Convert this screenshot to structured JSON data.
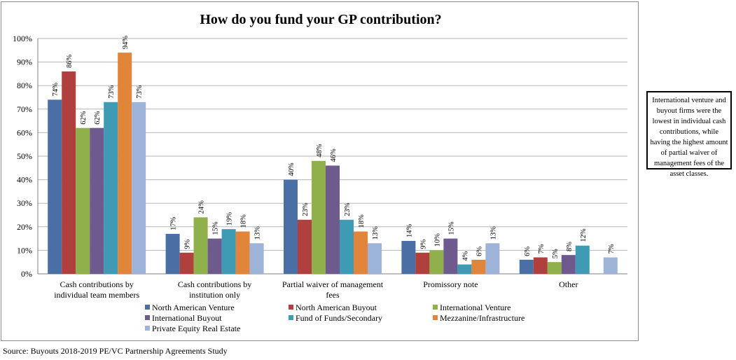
{
  "chart_data": {
    "type": "bar",
    "title": "How do you fund your GP contribution?",
    "categories": [
      [
        "Cash contributions by",
        "individual team members"
      ],
      [
        "Cash contributions by",
        "institution only"
      ],
      [
        "Partial waiver of management",
        "fees"
      ],
      [
        "Promissory note"
      ],
      [
        "Other"
      ]
    ],
    "ylim": [
      0,
      100
    ],
    "yticks": [
      "0%",
      "10%",
      "20%",
      "30%",
      "40%",
      "50%",
      "60%",
      "70%",
      "80%",
      "90%",
      "100%"
    ],
    "grid": true,
    "legend_position": "bottom",
    "series": [
      {
        "name": "North American Venture",
        "color": "#4a6fa5",
        "values": [
          74,
          17,
          40,
          14,
          6
        ],
        "labels": [
          "74%",
          "17%",
          "40%",
          "14%",
          "6%"
        ]
      },
      {
        "name": "North American Buyout",
        "color": "#b0403d",
        "values": [
          86,
          9,
          23,
          9,
          7
        ],
        "labels": [
          "86%",
          "9%",
          "23%",
          "9%",
          "7%"
        ]
      },
      {
        "name": "International Venture",
        "color": "#8fb04a",
        "values": [
          62,
          24,
          48,
          10,
          5
        ],
        "labels": [
          "62%",
          "24%",
          "48%",
          "10%",
          "5%"
        ]
      },
      {
        "name": "International Buyout",
        "color": "#6f5a8e",
        "values": [
          62,
          15,
          46,
          15,
          8
        ],
        "labels": [
          "62%",
          "15%",
          "46%",
          "15%",
          "8%"
        ]
      },
      {
        "name": "Fund of Funds/Secondary",
        "color": "#3e9bb3",
        "values": [
          73,
          19,
          23,
          4,
          12
        ],
        "labels": [
          "73%",
          "19%",
          "23%",
          "4%",
          "12%"
        ]
      },
      {
        "name": "Mezzanine/Infrastructure",
        "color": "#e0853a",
        "values": [
          94,
          18,
          18,
          6,
          null
        ],
        "labels": [
          "94%",
          "18%",
          "18%",
          "6%",
          ""
        ]
      },
      {
        "name": "Private Equity Real Estate",
        "color": "#9db3d8",
        "values": [
          73,
          13,
          13,
          13,
          7
        ],
        "labels": [
          "73%",
          "13%",
          "13%",
          "13%",
          "7%"
        ]
      }
    ]
  },
  "side_note": "International venture and buyout firms were the lowest in individual cash contributions, while having the highest amount of partial waiver of management fees of the asset classes.",
  "source_note": "Source: Buyouts 2018-2019 PE/VC Partnership Agreements Study"
}
